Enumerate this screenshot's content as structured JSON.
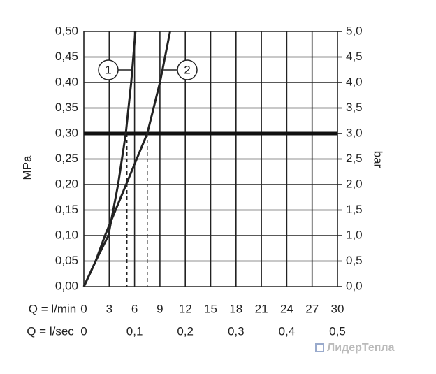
{
  "chart_data": {
    "type": "line",
    "x_label": "Q = l/min",
    "x2_label": "Q = l/sec",
    "y_label": "MPa",
    "y2_label": "bar",
    "xlim": [
      0,
      30
    ],
    "xticks": [
      0,
      3,
      6,
      9,
      12,
      15,
      18,
      21,
      24,
      27,
      30
    ],
    "x2lim": [
      0,
      0.5
    ],
    "x2ticks": [
      {
        "value": 0,
        "label": "0"
      },
      {
        "value": 0.1,
        "label": "0,1"
      },
      {
        "value": 0.2,
        "label": "0,2"
      },
      {
        "value": 0.3,
        "label": "0,3"
      },
      {
        "value": 0.4,
        "label": "0,4"
      },
      {
        "value": 0.5,
        "label": "0,5"
      }
    ],
    "ylim": [
      0,
      0.5
    ],
    "yticks": [
      {
        "value": 0,
        "label": "0,00"
      },
      {
        "value": 0.05,
        "label": "0,05"
      },
      {
        "value": 0.1,
        "label": "0,10"
      },
      {
        "value": 0.15,
        "label": "0,15"
      },
      {
        "value": 0.2,
        "label": "0,20"
      },
      {
        "value": 0.25,
        "label": "0,25"
      },
      {
        "value": 0.3,
        "label": "0,30"
      },
      {
        "value": 0.35,
        "label": "0,35"
      },
      {
        "value": 0.4,
        "label": "0,40"
      },
      {
        "value": 0.45,
        "label": "0,45"
      },
      {
        "value": 0.5,
        "label": "0,50"
      }
    ],
    "y2lim": [
      0,
      5
    ],
    "y2ticks": [
      {
        "value": 0,
        "label": "0,0"
      },
      {
        "value": 0.5,
        "label": "0,5"
      },
      {
        "value": 1,
        "label": "1,0"
      },
      {
        "value": 1.5,
        "label": "1,5"
      },
      {
        "value": 2,
        "label": "2,0"
      },
      {
        "value": 2.5,
        "label": "2,5"
      },
      {
        "value": 3,
        "label": "3,0"
      },
      {
        "value": 3.5,
        "label": "3,5"
      },
      {
        "value": 4,
        "label": "4,0"
      },
      {
        "value": 4.5,
        "label": "4,5"
      },
      {
        "value": 5,
        "label": "5,0"
      }
    ],
    "grid": true,
    "reference_y": 0.3,
    "dashed_x": [
      5.1,
      7.5
    ],
    "series": [
      {
        "name": "1",
        "color": "#222222",
        "x": [
          0,
          1.4,
          2.9,
          4.05,
          4.96,
          5.6,
          6.1
        ],
        "values": [
          0,
          0.05,
          0.1,
          0.2,
          0.3,
          0.4,
          0.5
        ]
      },
      {
        "name": "2",
        "color": "#222222",
        "x": [
          0,
          1.4,
          2.5,
          5.0,
          7.5,
          9.0,
          10.2
        ],
        "values": [
          0,
          0.05,
          0.1,
          0.2,
          0.3,
          0.4,
          0.5
        ]
      }
    ]
  },
  "watermark": "ЛидерТепла"
}
